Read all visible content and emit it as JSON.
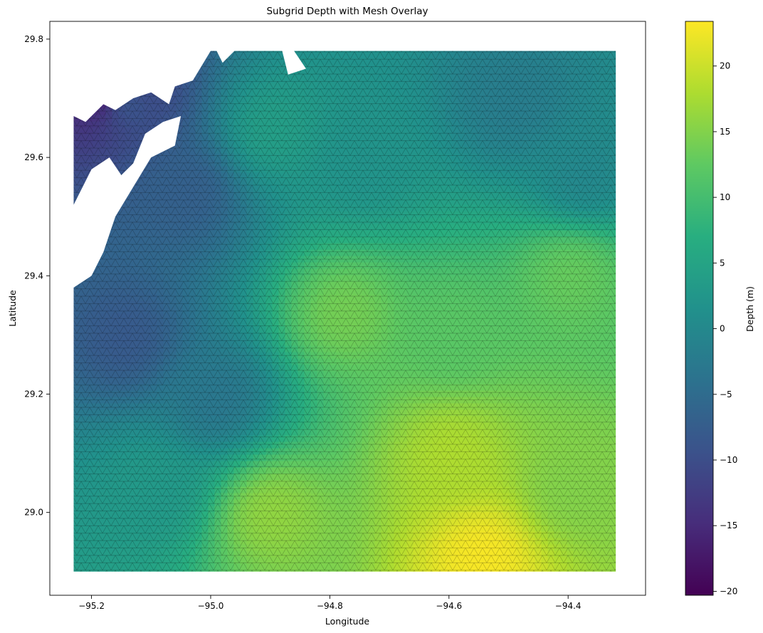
{
  "chart_data": {
    "type": "heatmap",
    "title": "Subgrid Depth with Mesh Overlay",
    "xlabel": "Longitude",
    "ylabel": "Latitude",
    "xlim": [
      -95.27,
      -94.27
    ],
    "ylim": [
      28.86,
      29.83
    ],
    "x_ticks": [
      -95.2,
      -95.0,
      -94.8,
      -94.6,
      -94.4
    ],
    "x_tick_labels": [
      "−95.2",
      "−95.0",
      "−94.8",
      "−94.6",
      "−94.4"
    ],
    "y_ticks": [
      29.0,
      29.2,
      29.4,
      29.6,
      29.8
    ],
    "y_tick_labels": [
      "29.0",
      "29.2",
      "29.4",
      "29.6",
      "29.8"
    ],
    "colorbar": {
      "label": "Depth (m)",
      "colormap": "viridis",
      "range": [
        -20.3,
        23.4
      ],
      "ticks": [
        -20,
        -15,
        -10,
        -5,
        0,
        5,
        10,
        15,
        20
      ],
      "tick_labels": [
        "−20",
        "−15",
        "−10",
        "−5",
        "0",
        "5",
        "10",
        "15",
        "20"
      ]
    },
    "data_extent": {
      "lon": [
        -95.23,
        -94.32
      ],
      "lat": [
        28.9,
        29.78
      ]
    },
    "depth_samples": [
      {
        "lon": -95.15,
        "lat": 29.7,
        "depth": -8
      },
      {
        "lon": -95.05,
        "lat": 29.55,
        "depth": -7
      },
      {
        "lon": -94.9,
        "lat": 29.65,
        "depth": 4
      },
      {
        "lon": -94.75,
        "lat": 29.6,
        "depth": 2
      },
      {
        "lon": -94.5,
        "lat": 29.7,
        "depth": -2
      },
      {
        "lon": -94.38,
        "lat": 29.58,
        "depth": 0
      },
      {
        "lon": -95.15,
        "lat": 29.3,
        "depth": -8
      },
      {
        "lon": -95.0,
        "lat": 29.2,
        "depth": -3
      },
      {
        "lon": -94.78,
        "lat": 29.34,
        "depth": 14
      },
      {
        "lon": -94.6,
        "lat": 29.3,
        "depth": 12
      },
      {
        "lon": -94.4,
        "lat": 29.4,
        "depth": 13
      },
      {
        "lon": -95.1,
        "lat": 29.05,
        "depth": 3
      },
      {
        "lon": -94.9,
        "lat": 29.0,
        "depth": 16
      },
      {
        "lon": -94.6,
        "lat": 29.1,
        "depth": 18
      },
      {
        "lon": -94.4,
        "lat": 29.05,
        "depth": 15
      },
      {
        "lon": -94.55,
        "lat": 28.93,
        "depth": 23
      },
      {
        "lon": -95.18,
        "lat": 29.72,
        "depth": -19
      }
    ]
  }
}
